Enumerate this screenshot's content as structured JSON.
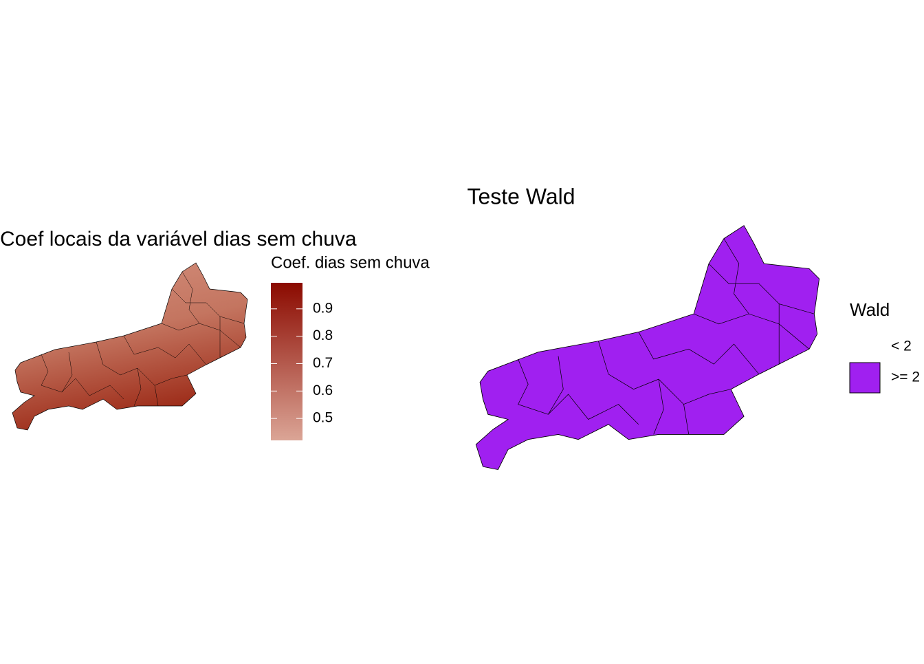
{
  "maps": [
    {
      "title": "Coef locais da variável dias sem chuva",
      "legend": {
        "title": "Coef. dias sem chuva",
        "ticks": [
          0.5,
          0.6,
          0.7,
          0.8,
          0.9
        ],
        "limits": [
          0.42,
          0.995
        ],
        "low_color": "#dba596",
        "high_color": "#8b0a00"
      }
    },
    {
      "title": "Teste Wald",
      "legend": {
        "title": "Wald",
        "items": [
          {
            "label": "< 2",
            "color": "#ffffff"
          },
          {
            "label": ">= 2",
            "color": "#a020f0"
          }
        ]
      }
    }
  ]
}
